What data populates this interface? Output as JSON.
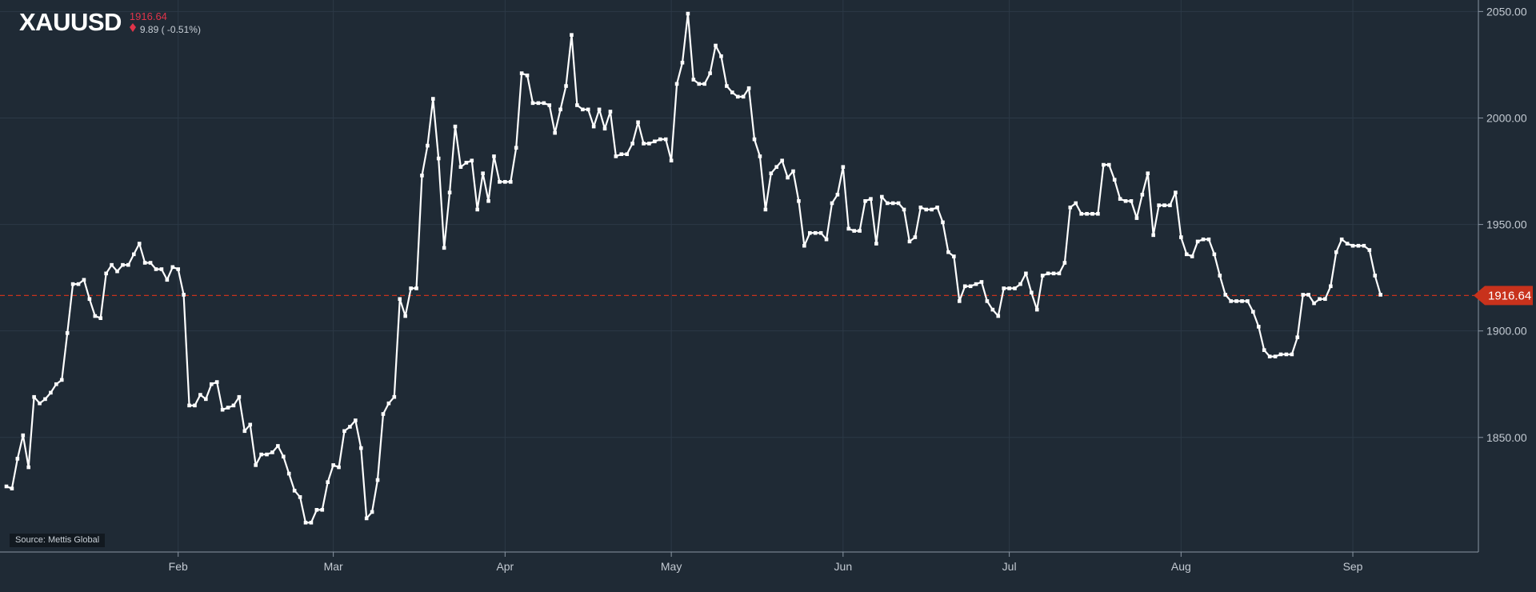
{
  "header": {
    "symbol": "XAUUSD",
    "last_price": "1916.64",
    "change_text": "9.89 ( -0.51%)"
  },
  "source_label": "Source: Mettis Global",
  "current_price_tag": "1916.64",
  "colors": {
    "background": "#1f2a35",
    "line": "#ffffff",
    "down": "#e0344a",
    "price_tag": "#c8321c",
    "grid": "#2c3946",
    "axis": "#8a96a3"
  },
  "icons": {
    "change_direction": "down-arrow-icon"
  },
  "chart_data": {
    "type": "line",
    "title": "XAUUSD",
    "xlabel": "",
    "ylabel": "",
    "x_ticks": [
      {
        "label": "Feb",
        "x": 31
      },
      {
        "label": "Mar",
        "x": 59
      },
      {
        "label": "Apr",
        "x": 90
      },
      {
        "label": "May",
        "x": 120
      },
      {
        "label": "Jun",
        "x": 151
      },
      {
        "label": "Jul",
        "x": 181
      },
      {
        "label": "Aug",
        "x": 212
      },
      {
        "label": "Sep",
        "x": 243
      }
    ],
    "y_ticks": [
      1850,
      1900,
      1950,
      2000,
      2050
    ],
    "y_tick_labels": [
      "1850.00",
      "1900.00",
      "1950.00",
      "2000.00",
      "2050.00"
    ],
    "xlim": [
      0,
      257
    ],
    "ylim": [
      1796.2,
      2055.4
    ],
    "grid": true,
    "reference_line": 1916.64,
    "series": [
      {
        "values": [
          [
            0,
            1827
          ],
          [
            1,
            1826
          ],
          [
            2,
            1840
          ],
          [
            3,
            1851
          ],
          [
            4,
            1836
          ],
          [
            5,
            1869
          ],
          [
            6,
            1866
          ],
          [
            7,
            1868
          ],
          [
            8,
            1871
          ],
          [
            9,
            1875
          ],
          [
            10,
            1877
          ],
          [
            11,
            1899
          ],
          [
            12,
            1922
          ],
          [
            13,
            1922
          ],
          [
            14,
            1924
          ],
          [
            15,
            1915
          ],
          [
            16,
            1907
          ],
          [
            17,
            1906
          ],
          [
            18,
            1927
          ],
          [
            19,
            1931
          ],
          [
            20,
            1928
          ],
          [
            21,
            1931
          ],
          [
            22,
            1931
          ],
          [
            23,
            1936
          ],
          [
            24,
            1941
          ],
          [
            25,
            1932
          ],
          [
            26,
            1932
          ],
          [
            27,
            1929
          ],
          [
            28,
            1929
          ],
          [
            29,
            1924
          ],
          [
            30,
            1930
          ],
          [
            31,
            1929
          ],
          [
            32,
            1917
          ],
          [
            33,
            1865
          ],
          [
            34,
            1865
          ],
          [
            35,
            1870
          ],
          [
            36,
            1868
          ],
          [
            37,
            1875
          ],
          [
            38,
            1876
          ],
          [
            39,
            1863
          ],
          [
            40,
            1864
          ],
          [
            41,
            1865
          ],
          [
            42,
            1869
          ],
          [
            43,
            1853
          ],
          [
            44,
            1856
          ],
          [
            45,
            1837
          ],
          [
            46,
            1842
          ],
          [
            47,
            1842
          ],
          [
            48,
            1843
          ],
          [
            49,
            1846
          ],
          [
            50,
            1841
          ],
          [
            51,
            1833
          ],
          [
            52,
            1825
          ],
          [
            53,
            1822
          ],
          [
            54,
            1810
          ],
          [
            55,
            1810
          ],
          [
            56,
            1816
          ],
          [
            57,
            1816
          ],
          [
            58,
            1829
          ],
          [
            59,
            1837
          ],
          [
            60,
            1836
          ],
          [
            61,
            1853
          ],
          [
            62,
            1855
          ],
          [
            63,
            1858
          ],
          [
            64,
            1845
          ],
          [
            65,
            1812
          ],
          [
            66,
            1815
          ],
          [
            67,
            1830
          ],
          [
            68,
            1861
          ],
          [
            69,
            1866
          ],
          [
            70,
            1869
          ],
          [
            71,
            1915
          ],
          [
            72,
            1907
          ],
          [
            73,
            1920
          ],
          [
            74,
            1920
          ],
          [
            75,
            1973
          ],
          [
            76,
            1987
          ],
          [
            77,
            2009
          ],
          [
            78,
            1981
          ],
          [
            79,
            1939
          ],
          [
            80,
            1965
          ],
          [
            81,
            1996
          ],
          [
            82,
            1977
          ],
          [
            83,
            1979
          ],
          [
            84,
            1980
          ],
          [
            85,
            1957
          ],
          [
            86,
            1974
          ],
          [
            87,
            1961
          ],
          [
            88,
            1982
          ],
          [
            89,
            1970
          ],
          [
            90,
            1970
          ],
          [
            91,
            1970
          ],
          [
            92,
            1986
          ],
          [
            93,
            2021
          ],
          [
            94,
            2020
          ],
          [
            95,
            2007
          ],
          [
            96,
            2007
          ],
          [
            97,
            2007
          ],
          [
            98,
            2006
          ],
          [
            99,
            1993
          ],
          [
            100,
            2004
          ],
          [
            101,
            2015
          ],
          [
            102,
            2039
          ],
          [
            103,
            2006
          ],
          [
            104,
            2004
          ],
          [
            105,
            2004
          ],
          [
            106,
            1996
          ],
          [
            107,
            2004
          ],
          [
            108,
            1995
          ],
          [
            109,
            2003
          ],
          [
            110,
            1982
          ],
          [
            111,
            1983
          ],
          [
            112,
            1983
          ],
          [
            113,
            1988
          ],
          [
            114,
            1998
          ],
          [
            115,
            1988
          ],
          [
            116,
            1988
          ],
          [
            117,
            1989
          ],
          [
            118,
            1990
          ],
          [
            119,
            1990
          ],
          [
            120,
            1980
          ],
          [
            121,
            2016
          ],
          [
            122,
            2026
          ],
          [
            123,
            2049
          ],
          [
            124,
            2018
          ],
          [
            125,
            2016
          ],
          [
            126,
            2016
          ],
          [
            127,
            2021
          ],
          [
            128,
            2034
          ],
          [
            129,
            2029
          ],
          [
            130,
            2015
          ],
          [
            131,
            2012
          ],
          [
            132,
            2010
          ],
          [
            133,
            2010
          ],
          [
            134,
            2014
          ],
          [
            135,
            1990
          ],
          [
            136,
            1982
          ],
          [
            137,
            1957
          ],
          [
            138,
            1974
          ],
          [
            139,
            1977
          ],
          [
            140,
            1980
          ],
          [
            141,
            1972
          ],
          [
            142,
            1975
          ],
          [
            143,
            1961
          ],
          [
            144,
            1940
          ],
          [
            145,
            1946
          ],
          [
            146,
            1946
          ],
          [
            147,
            1946
          ],
          [
            148,
            1943
          ],
          [
            149,
            1960
          ],
          [
            150,
            1964
          ],
          [
            151,
            1977
          ],
          [
            152,
            1948
          ],
          [
            153,
            1947
          ],
          [
            154,
            1947
          ],
          [
            155,
            1961
          ],
          [
            156,
            1962
          ],
          [
            157,
            1941
          ],
          [
            158,
            1963
          ],
          [
            159,
            1960
          ],
          [
            160,
            1960
          ],
          [
            161,
            1960
          ],
          [
            162,
            1957
          ],
          [
            163,
            1942
          ],
          [
            164,
            1944
          ],
          [
            165,
            1958
          ],
          [
            166,
            1957
          ],
          [
            167,
            1957
          ],
          [
            168,
            1958
          ],
          [
            169,
            1951
          ],
          [
            170,
            1937
          ],
          [
            171,
            1935
          ],
          [
            172,
            1914
          ],
          [
            173,
            1921
          ],
          [
            174,
            1921
          ],
          [
            175,
            1922
          ],
          [
            176,
            1923
          ],
          [
            177,
            1914
          ],
          [
            178,
            1910
          ],
          [
            179,
            1907
          ],
          [
            180,
            1920
          ],
          [
            181,
            1920
          ],
          [
            182,
            1920
          ],
          [
            183,
            1922
          ],
          [
            184,
            1927
          ],
          [
            185,
            1918
          ],
          [
            186,
            1910
          ],
          [
            187,
            1926
          ],
          [
            188,
            1927
          ],
          [
            189,
            1927
          ],
          [
            190,
            1927
          ],
          [
            191,
            1932
          ],
          [
            192,
            1958
          ],
          [
            193,
            1960
          ],
          [
            194,
            1955
          ],
          [
            195,
            1955
          ],
          [
            196,
            1955
          ],
          [
            197,
            1955
          ],
          [
            198,
            1978
          ],
          [
            199,
            1978
          ],
          [
            200,
            1971
          ],
          [
            201,
            1962
          ],
          [
            202,
            1961
          ],
          [
            203,
            1961
          ],
          [
            204,
            1953
          ],
          [
            205,
            1964
          ],
          [
            206,
            1974
          ],
          [
            207,
            1945
          ],
          [
            208,
            1959
          ],
          [
            209,
            1959
          ],
          [
            210,
            1959
          ],
          [
            211,
            1965
          ],
          [
            212,
            1944
          ],
          [
            213,
            1936
          ],
          [
            214,
            1935
          ],
          [
            215,
            1942
          ],
          [
            216,
            1943
          ],
          [
            217,
            1943
          ],
          [
            218,
            1936
          ],
          [
            219,
            1926
          ],
          [
            220,
            1917
          ],
          [
            221,
            1914
          ],
          [
            222,
            1914
          ],
          [
            223,
            1914
          ],
          [
            224,
            1914
          ],
          [
            225,
            1909
          ],
          [
            226,
            1902
          ],
          [
            227,
            1891
          ],
          [
            228,
            1888
          ],
          [
            229,
            1888
          ],
          [
            230,
            1889
          ],
          [
            231,
            1889
          ],
          [
            232,
            1889
          ],
          [
            233,
            1897
          ],
          [
            234,
            1917
          ],
          [
            235,
            1917
          ],
          [
            236,
            1913
          ],
          [
            237,
            1915
          ],
          [
            238,
            1915
          ],
          [
            239,
            1921
          ],
          [
            240,
            1937
          ],
          [
            241,
            1943
          ],
          [
            242,
            1941
          ],
          [
            243,
            1940
          ],
          [
            244,
            1940
          ],
          [
            245,
            1940
          ],
          [
            246,
            1938
          ],
          [
            247,
            1926
          ],
          [
            248,
            1917
          ]
        ]
      }
    ]
  }
}
